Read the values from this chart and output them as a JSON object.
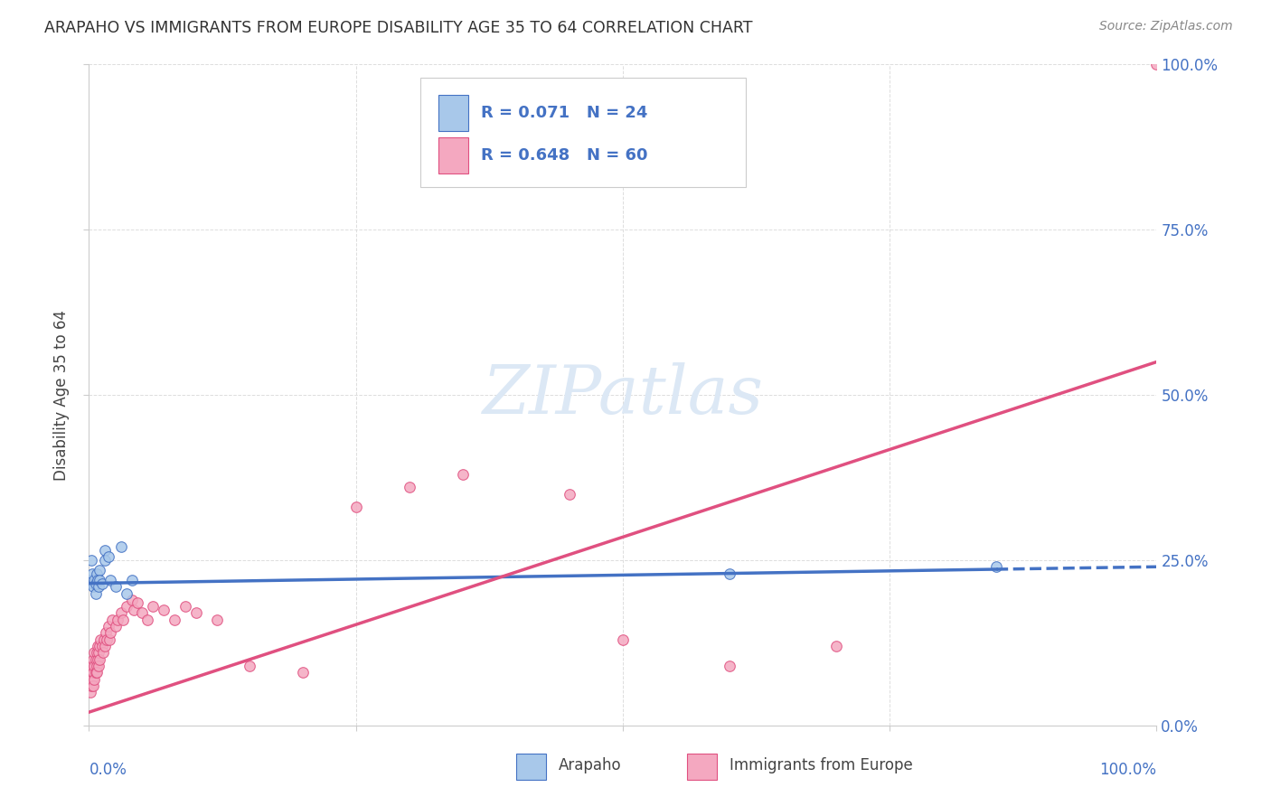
{
  "title": "ARAPAHO VS IMMIGRANTS FROM EUROPE DISABILITY AGE 35 TO 64 CORRELATION CHART",
  "source": "Source: ZipAtlas.com",
  "ylabel": "Disability Age 35 to 64",
  "R_arapaho": 0.071,
  "N_arapaho": 24,
  "R_europe": 0.648,
  "N_europe": 60,
  "color_arapaho_fill": "#a8c8ea",
  "color_arapaho_edge": "#4472c4",
  "color_europe_fill": "#f4a8c0",
  "color_europe_edge": "#e05080",
  "color_line_arapaho": "#4472c4",
  "color_line_europe": "#e05080",
  "color_title": "#333333",
  "color_source": "#888888",
  "color_legend_text": "#4472c4",
  "color_axis_labels": "#4472c4",
  "watermark_color": "#dce8f5",
  "background_color": "#ffffff",
  "grid_color": "#dddddd",
  "arapaho_x": [
    0.001,
    0.002,
    0.003,
    0.004,
    0.004,
    0.005,
    0.006,
    0.006,
    0.007,
    0.008,
    0.009,
    0.01,
    0.01,
    0.012,
    0.015,
    0.015,
    0.018,
    0.02,
    0.025,
    0.03,
    0.035,
    0.04,
    0.6,
    0.85
  ],
  "arapaho_y": [
    0.22,
    0.25,
    0.23,
    0.215,
    0.21,
    0.22,
    0.2,
    0.215,
    0.23,
    0.22,
    0.21,
    0.235,
    0.22,
    0.215,
    0.265,
    0.25,
    0.255,
    0.22,
    0.21,
    0.27,
    0.2,
    0.22,
    0.23,
    0.24
  ],
  "europe_x": [
    0.001,
    0.001,
    0.002,
    0.002,
    0.003,
    0.003,
    0.004,
    0.004,
    0.004,
    0.005,
    0.005,
    0.005,
    0.006,
    0.006,
    0.007,
    0.007,
    0.007,
    0.008,
    0.008,
    0.009,
    0.009,
    0.01,
    0.01,
    0.011,
    0.012,
    0.013,
    0.014,
    0.015,
    0.016,
    0.017,
    0.018,
    0.019,
    0.02,
    0.022,
    0.025,
    0.027,
    0.03,
    0.032,
    0.035,
    0.04,
    0.042,
    0.045,
    0.05,
    0.055,
    0.06,
    0.07,
    0.08,
    0.09,
    0.1,
    0.12,
    0.15,
    0.2,
    0.25,
    0.3,
    0.35,
    0.45,
    0.5,
    0.6,
    0.7,
    1.0
  ],
  "europe_y": [
    0.05,
    0.07,
    0.06,
    0.08,
    0.07,
    0.09,
    0.08,
    0.1,
    0.06,
    0.09,
    0.11,
    0.07,
    0.1,
    0.08,
    0.11,
    0.09,
    0.08,
    0.1,
    0.12,
    0.11,
    0.09,
    0.12,
    0.1,
    0.13,
    0.12,
    0.11,
    0.13,
    0.12,
    0.14,
    0.13,
    0.15,
    0.13,
    0.14,
    0.16,
    0.15,
    0.16,
    0.17,
    0.16,
    0.18,
    0.19,
    0.175,
    0.185,
    0.17,
    0.16,
    0.18,
    0.175,
    0.16,
    0.18,
    0.17,
    0.16,
    0.09,
    0.08,
    0.33,
    0.36,
    0.38,
    0.35,
    0.13,
    0.09,
    0.12,
    1.0
  ],
  "xlim": [
    0.0,
    1.0
  ],
  "ylim": [
    0.0,
    1.0
  ],
  "marker_size": 70,
  "arapaho_line_x": [
    0.0,
    1.0
  ],
  "arapaho_line_y_start": 0.215,
  "arapaho_line_y_end": 0.24,
  "europe_line_x_start": 0.0,
  "europe_line_y_start": 0.02,
  "europe_line_x_end": 1.0,
  "europe_line_y_end": 0.55
}
